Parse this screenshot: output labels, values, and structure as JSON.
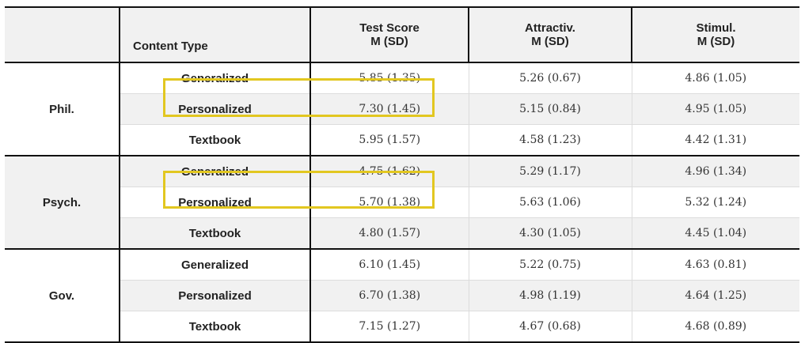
{
  "table": {
    "headers": {
      "group": "",
      "content_type": "Content Type",
      "test_score": [
        "Test Score",
        "M (SD)"
      ],
      "attractiveness": [
        "Attractiv.",
        "M (SD)"
      ],
      "stimulation": [
        "Stimul.",
        "M (SD)"
      ]
    },
    "groups": [
      {
        "name": "Phil.",
        "rows": [
          {
            "type": "Generalized",
            "test_score": "5.85 (1.35)",
            "attractiveness": "5.26 (0.67)",
            "stimulation": "4.86 (1.05)"
          },
          {
            "type": "Personalized",
            "test_score": "7.30 (1.45)",
            "attractiveness": "5.15 (0.84)",
            "stimulation": "4.95 (1.05)"
          },
          {
            "type": "Textbook",
            "test_score": "5.95 (1.57)",
            "attractiveness": "4.58 (1.23)",
            "stimulation": "4.42 (1.31)"
          }
        ]
      },
      {
        "name": "Psych.",
        "rows": [
          {
            "type": "Generalized",
            "test_score": "4.75 (1.62)",
            "attractiveness": "5.29 (1.17)",
            "stimulation": "4.96 (1.34)"
          },
          {
            "type": "Personalized",
            "test_score": "5.70 (1.38)",
            "attractiveness": "5.63 (1.06)",
            "stimulation": "5.32 (1.24)"
          },
          {
            "type": "Textbook",
            "test_score": "4.80 (1.57)",
            "attractiveness": "4.30 (1.05)",
            "stimulation": "4.45 (1.04)"
          }
        ]
      },
      {
        "name": "Gov.",
        "rows": [
          {
            "type": "Generalized",
            "test_score": "6.10 (1.45)",
            "attractiveness": "5.22 (0.75)",
            "stimulation": "4.63 (0.81)"
          },
          {
            "type": "Personalized",
            "test_score": "6.70 (1.38)",
            "attractiveness": "4.98 (1.19)",
            "stimulation": "4.64 (1.25)"
          },
          {
            "type": "Textbook",
            "test_score": "7.15 (1.27)",
            "attractiveness": "4.67 (0.68)",
            "stimulation": "4.68 (0.89)"
          }
        ]
      }
    ],
    "highlight_color": "#e2c720",
    "shade_color": "#f1f1f1"
  }
}
